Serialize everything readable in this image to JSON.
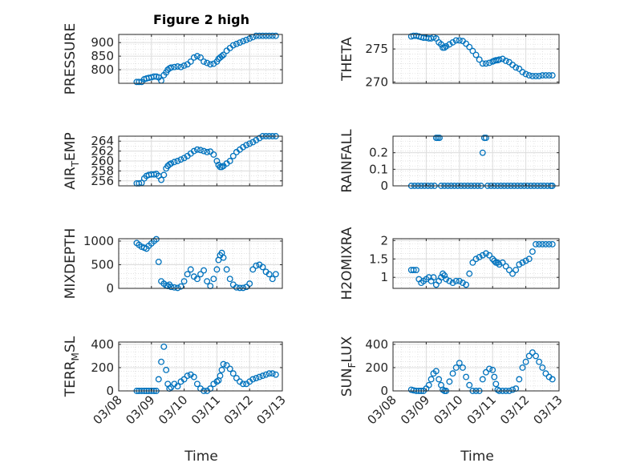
{
  "chart_data": {
    "type": "scatter",
    "title": "Figure 2 high",
    "xlabel": "Time",
    "xlim": [
      "03/08",
      "03/13"
    ],
    "xticks": [
      "03/08",
      "03/09",
      "03/10",
      "03/11",
      "03/12",
      "03/13"
    ],
    "grid": true,
    "marker_color": "#0072BD",
    "panels": [
      {
        "id": "pressure",
        "ylabel": "PRESSURE",
        "ylabel_sub": "",
        "ylabel_rest": "",
        "ylim": [
          750,
          930
        ],
        "yticks": [
          "800",
          "850",
          "900"
        ],
        "ytick_values": [
          800,
          850,
          900
        ],
        "x": [
          0.55,
          0.62,
          0.7,
          0.78,
          0.85,
          0.92,
          1.0,
          1.08,
          1.15,
          1.22,
          1.3,
          1.38,
          1.45,
          1.5,
          1.55,
          1.6,
          1.7,
          1.8,
          1.9,
          2.0,
          2.1,
          2.2,
          2.3,
          2.4,
          2.5,
          2.6,
          2.7,
          2.8,
          2.9,
          3.0,
          3.05,
          3.1,
          3.15,
          3.2,
          3.3,
          3.4,
          3.5,
          3.6,
          3.7,
          3.8,
          3.9,
          4.0,
          4.1,
          4.2,
          4.3,
          4.4,
          4.5,
          4.6,
          4.7,
          4.8
        ],
        "y": [
          755,
          755,
          755,
          765,
          768,
          770,
          772,
          775,
          775,
          772,
          760,
          780,
          790,
          800,
          805,
          808,
          810,
          812,
          810,
          815,
          820,
          830,
          845,
          850,
          845,
          830,
          825,
          820,
          822,
          830,
          840,
          845,
          850,
          855,
          870,
          880,
          890,
          895,
          900,
          905,
          910,
          915,
          920,
          925,
          925,
          925,
          925,
          925,
          925,
          925
        ]
      },
      {
        "id": "theta",
        "ylabel": "THETA",
        "ylabel_sub": "",
        "ylabel_rest": "",
        "ylim": [
          269.8,
          277.2
        ],
        "yticks": [
          "270",
          "275"
        ],
        "ytick_values": [
          270,
          275
        ],
        "x": [
          0.55,
          0.62,
          0.7,
          0.78,
          0.85,
          0.92,
          1.0,
          1.08,
          1.15,
          1.22,
          1.3,
          1.38,
          1.45,
          1.5,
          1.55,
          1.6,
          1.7,
          1.8,
          1.9,
          2.0,
          2.1,
          2.2,
          2.3,
          2.4,
          2.5,
          2.6,
          2.7,
          2.8,
          2.9,
          3.0,
          3.05,
          3.1,
          3.15,
          3.2,
          3.3,
          3.4,
          3.5,
          3.6,
          3.7,
          3.8,
          3.9,
          4.0,
          4.1,
          4.2,
          4.3,
          4.4,
          4.5,
          4.6,
          4.7,
          4.8
        ],
        "y": [
          276.9,
          277.0,
          277.0,
          276.9,
          276.8,
          276.7,
          276.7,
          276.6,
          276.6,
          276.8,
          276.6,
          276.0,
          275.7,
          275.2,
          275.2,
          275.4,
          275.7,
          276.0,
          276.3,
          276.3,
          276.2,
          275.8,
          275.3,
          274.7,
          274.1,
          273.4,
          272.8,
          272.8,
          272.9,
          273.1,
          273.2,
          273.3,
          273.3,
          273.4,
          273.5,
          273.2,
          273.0,
          272.6,
          272.2,
          272.0,
          271.5,
          271.2,
          271.0,
          270.9,
          270.9,
          270.9,
          271.0,
          271.0,
          271.0,
          271.0
        ]
      },
      {
        "id": "airtemp",
        "ylabel": "AIR",
        "ylabel_sub": "T",
        "ylabel_rest": "EMP",
        "ylim": [
          255,
          265
        ],
        "yticks": [
          "256",
          "258",
          "260",
          "262",
          "264"
        ],
        "ytick_values": [
          256,
          258,
          260,
          262,
          264
        ],
        "x": [
          0.55,
          0.62,
          0.7,
          0.78,
          0.85,
          0.92,
          1.0,
          1.08,
          1.15,
          1.22,
          1.3,
          1.38,
          1.45,
          1.5,
          1.55,
          1.6,
          1.7,
          1.8,
          1.9,
          2.0,
          2.1,
          2.2,
          2.3,
          2.4,
          2.5,
          2.6,
          2.7,
          2.8,
          2.9,
          3.0,
          3.05,
          3.1,
          3.15,
          3.2,
          3.3,
          3.4,
          3.5,
          3.6,
          3.7,
          3.8,
          3.9,
          4.0,
          4.1,
          4.2,
          4.3,
          4.4,
          4.5,
          4.6,
          4.7,
          4.8
        ],
        "y": [
          255.5,
          255.5,
          255.6,
          256.5,
          257.0,
          257.2,
          257.3,
          257.3,
          257.4,
          257.0,
          256.2,
          257.2,
          258.5,
          259.0,
          259.3,
          259.5,
          259.8,
          260.0,
          260.3,
          260.6,
          261.0,
          261.5,
          262.0,
          262.3,
          262.2,
          262.0,
          261.8,
          261.9,
          261.3,
          260.0,
          259.2,
          258.8,
          258.8,
          259.0,
          259.5,
          260.0,
          261.0,
          261.8,
          262.3,
          262.8,
          263.2,
          263.5,
          263.8,
          264.2,
          264.6,
          265.0,
          265.0,
          265.0,
          265.0,
          265.0
        ]
      },
      {
        "id": "rainfall",
        "ylabel": "RAINFALL",
        "ylabel_sub": "",
        "ylabel_rest": "",
        "ylim": [
          0,
          0.3
        ],
        "yticks": [
          "0",
          "0.1",
          "0.2"
        ],
        "ytick_values": [
          0,
          0.1,
          0.2
        ],
        "x": [
          0.55,
          0.65,
          0.75,
          0.85,
          0.95,
          1.05,
          1.15,
          1.25,
          1.3,
          1.35,
          1.4,
          1.45,
          1.55,
          1.65,
          1.75,
          1.85,
          1.95,
          2.05,
          2.15,
          2.25,
          2.35,
          2.45,
          2.55,
          2.65,
          2.7,
          2.75,
          2.8,
          2.85,
          2.95,
          3.05,
          3.15,
          3.25,
          3.35,
          3.45,
          3.55,
          3.65,
          3.75,
          3.85,
          3.95,
          4.05,
          4.15,
          4.25,
          4.35,
          4.45,
          4.55,
          4.65,
          4.75,
          4.8
        ],
        "y": [
          0,
          0,
          0,
          0,
          0,
          0,
          0,
          0,
          0.29,
          0.29,
          0.29,
          0,
          0,
          0,
          0,
          0,
          0,
          0,
          0,
          0,
          0,
          0,
          0,
          0,
          0.2,
          0.29,
          0.29,
          0,
          0,
          0,
          0,
          0,
          0,
          0,
          0,
          0,
          0,
          0,
          0,
          0,
          0,
          0,
          0,
          0,
          0,
          0,
          0,
          0
        ]
      },
      {
        "id": "mixdepth",
        "ylabel": "MIXDEPTH",
        "ylabel_sub": "",
        "ylabel_rest": "",
        "ylim": [
          0,
          1050
        ],
        "yticks": [
          "0",
          "500",
          "1000"
        ],
        "ytick_values": [
          0,
          500,
          1000
        ],
        "x": [
          0.55,
          0.62,
          0.7,
          0.78,
          0.85,
          0.92,
          1.0,
          1.08,
          1.15,
          1.22,
          1.3,
          1.38,
          1.45,
          1.5,
          1.55,
          1.6,
          1.7,
          1.8,
          1.9,
          2.0,
          2.1,
          2.2,
          2.3,
          2.4,
          2.5,
          2.6,
          2.7,
          2.8,
          2.9,
          3.0,
          3.05,
          3.1,
          3.15,
          3.2,
          3.3,
          3.4,
          3.5,
          3.6,
          3.7,
          3.8,
          3.9,
          4.0,
          4.1,
          4.2,
          4.3,
          4.4,
          4.5,
          4.6,
          4.7,
          4.8
        ],
        "y": [
          960,
          920,
          880,
          860,
          840,
          900,
          950,
          1000,
          1040,
          560,
          150,
          100,
          60,
          50,
          80,
          30,
          20,
          10,
          40,
          150,
          300,
          400,
          250,
          200,
          300,
          380,
          150,
          50,
          200,
          400,
          600,
          700,
          750,
          650,
          400,
          200,
          80,
          20,
          10,
          10,
          30,
          100,
          400,
          480,
          500,
          450,
          350,
          300,
          200,
          300
        ]
      },
      {
        "id": "h2omixra",
        "ylabel": "H2OMIXRA",
        "ylabel_sub": "",
        "ylabel_rest": "",
        "ylim": [
          0.7,
          2.05
        ],
        "yticks": [
          "1",
          "1.5",
          "2"
        ],
        "ytick_values": [
          1,
          1.5,
          2
        ],
        "x": [
          0.55,
          0.62,
          0.7,
          0.78,
          0.85,
          0.92,
          1.0,
          1.08,
          1.15,
          1.22,
          1.3,
          1.38,
          1.45,
          1.5,
          1.55,
          1.6,
          1.7,
          1.8,
          1.9,
          2.0,
          2.1,
          2.2,
          2.3,
          2.4,
          2.5,
          2.6,
          2.7,
          2.8,
          2.9,
          3.0,
          3.05,
          3.1,
          3.15,
          3.2,
          3.3,
          3.4,
          3.5,
          3.6,
          3.7,
          3.8,
          3.9,
          4.0,
          4.1,
          4.2,
          4.3,
          4.4,
          4.5,
          4.6,
          4.7,
          4.8
        ],
        "y": [
          1.2,
          1.2,
          1.2,
          0.95,
          0.85,
          0.9,
          0.95,
          1.0,
          0.9,
          1.0,
          0.8,
          0.9,
          1.0,
          1.1,
          1.05,
          0.95,
          0.9,
          0.85,
          0.9,
          0.9,
          0.85,
          0.8,
          1.1,
          1.4,
          1.5,
          1.55,
          1.6,
          1.65,
          1.6,
          1.5,
          1.45,
          1.4,
          1.4,
          1.35,
          1.4,
          1.3,
          1.2,
          1.1,
          1.2,
          1.35,
          1.4,
          1.45,
          1.5,
          1.7,
          1.9,
          1.9,
          1.9,
          1.9,
          1.9,
          1.9
        ]
      },
      {
        "id": "terrmsl",
        "ylabel": "TERR",
        "ylabel_sub": "M",
        "ylabel_rest": "SL",
        "ylim": [
          0,
          420
        ],
        "yticks": [
          "0",
          "200",
          "400"
        ],
        "ytick_values": [
          0,
          200,
          400
        ],
        "x": [
          0.55,
          0.62,
          0.7,
          0.78,
          0.85,
          0.92,
          1.0,
          1.08,
          1.15,
          1.22,
          1.3,
          1.38,
          1.45,
          1.5,
          1.55,
          1.6,
          1.7,
          1.8,
          1.9,
          2.0,
          2.1,
          2.2,
          2.3,
          2.4,
          2.5,
          2.6,
          2.7,
          2.8,
          2.9,
          3.0,
          3.05,
          3.1,
          3.15,
          3.2,
          3.3,
          3.4,
          3.5,
          3.6,
          3.7,
          3.8,
          3.9,
          4.0,
          4.1,
          4.2,
          4.3,
          4.4,
          4.5,
          4.6,
          4.7,
          4.8
        ],
        "y": [
          0,
          0,
          0,
          0,
          0,
          0,
          0,
          0,
          0,
          100,
          250,
          380,
          180,
          60,
          20,
          30,
          60,
          40,
          80,
          100,
          130,
          140,
          120,
          60,
          20,
          0,
          0,
          20,
          60,
          80,
          90,
          130,
          180,
          230,
          220,
          190,
          150,
          110,
          80,
          60,
          60,
          80,
          100,
          110,
          120,
          130,
          140,
          150,
          150,
          140
        ]
      },
      {
        "id": "sunflux",
        "ylabel": "SUN",
        "ylabel_sub": "F",
        "ylabel_rest": "LUX",
        "ylim": [
          0,
          420
        ],
        "yticks": [
          "0",
          "200",
          "400"
        ],
        "ytick_values": [
          0,
          200,
          400
        ],
        "x": [
          0.55,
          0.62,
          0.7,
          0.78,
          0.85,
          0.92,
          1.0,
          1.08,
          1.15,
          1.22,
          1.3,
          1.38,
          1.45,
          1.5,
          1.55,
          1.6,
          1.7,
          1.8,
          1.9,
          2.0,
          2.1,
          2.2,
          2.3,
          2.4,
          2.5,
          2.6,
          2.7,
          2.8,
          2.9,
          3.0,
          3.05,
          3.1,
          3.15,
          3.2,
          3.3,
          3.4,
          3.5,
          3.6,
          3.7,
          3.8,
          3.9,
          4.0,
          4.1,
          4.2,
          4.3,
          4.4,
          4.5,
          4.6,
          4.7,
          4.8
        ],
        "y": [
          10,
          5,
          0,
          0,
          0,
          0,
          20,
          50,
          100,
          150,
          170,
          100,
          50,
          10,
          0,
          0,
          80,
          150,
          200,
          240,
          200,
          120,
          50,
          0,
          0,
          0,
          100,
          160,
          190,
          180,
          120,
          60,
          10,
          0,
          0,
          0,
          0,
          10,
          20,
          100,
          200,
          250,
          300,
          330,
          300,
          250,
          200,
          150,
          120,
          100
        ]
      }
    ]
  }
}
